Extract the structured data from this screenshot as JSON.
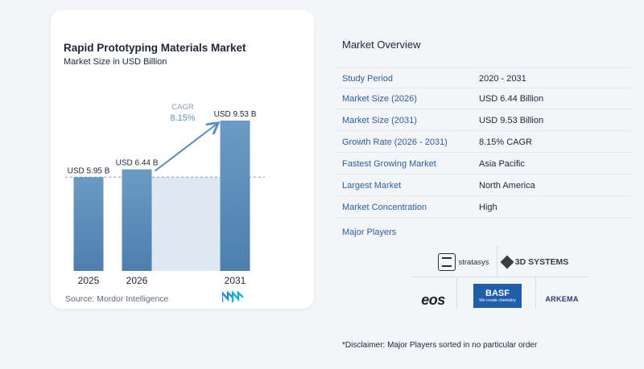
{
  "chart_data": {
    "type": "bar",
    "title": "Rapid Prototyping Materials Market",
    "subtitle": "Market Size in USD Billion",
    "categories": [
      "2025",
      "2026",
      "2031"
    ],
    "values": [
      5.95,
      6.44,
      9.53
    ],
    "value_labels": [
      "USD 5.95 B",
      "USD 6.44 B",
      "USD 9.53 B"
    ],
    "ylim": [
      0,
      10
    ],
    "cagr_label": "CAGR",
    "cagr_value": "8.15%",
    "colors": {
      "bar_top": "#6b9ac4",
      "bar_bottom": "#4d7fae",
      "shade": "#dde8f3",
      "arrow": "#5b8fc4",
      "cagr": "#5b8fc4"
    }
  },
  "source": "Source:  Mordor Intelligence",
  "overview": {
    "title": "Market Overview",
    "rows": [
      {
        "label": "Study Period",
        "value": "2020 - 2031"
      },
      {
        "label": "Market Size (2026)",
        "value": "USD 6.44 Billion"
      },
      {
        "label": "Market Size (2031)",
        "value": "USD 9.53 Billion"
      },
      {
        "label": "Growth Rate (2026 - 2031)",
        "value": "8.15% CAGR"
      },
      {
        "label": "Fastest Growing Market",
        "value": "Asia Pacific"
      },
      {
        "label": "Largest Market",
        "value": "North America"
      },
      {
        "label": "Market Concentration",
        "value": "High"
      }
    ],
    "players_label": "Major Players",
    "players": [
      "stratasys",
      "3D SYSTEMS",
      "eos",
      "BASF",
      "We create chemistry",
      "ARKEMA"
    ],
    "disclaimer": "*Disclaimer: Major Players sorted in no particular order"
  }
}
